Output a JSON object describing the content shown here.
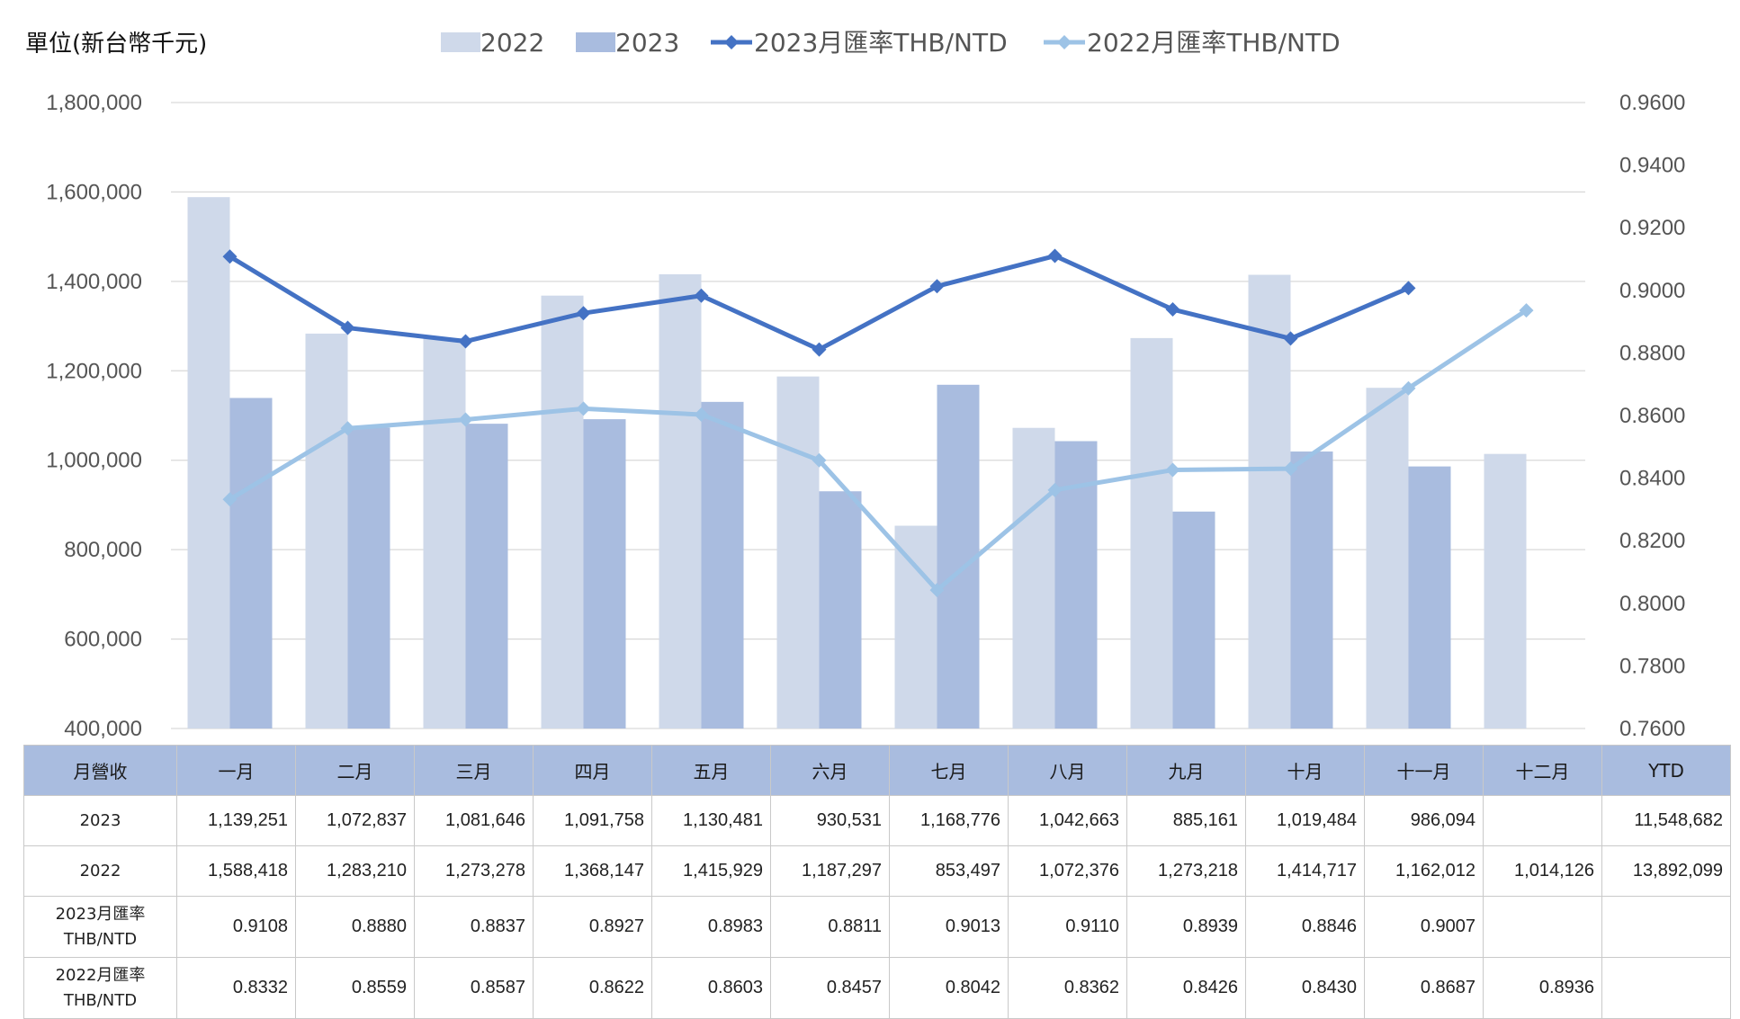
{
  "unit_label": "單位(新台幣千元)",
  "chart_data": {
    "type": "bar",
    "categories": [
      "一月",
      "二月",
      "三月",
      "四月",
      "五月",
      "六月",
      "七月",
      "八月",
      "九月",
      "十月",
      "十一月",
      "十二月"
    ],
    "series": [
      {
        "name": "2022",
        "kind": "bar",
        "axis": "left",
        "color": "#cfd9ea",
        "values": [
          1588418,
          1283210,
          1273278,
          1368147,
          1415929,
          1187297,
          853497,
          1072376,
          1273218,
          1414717,
          1162012,
          1014126
        ]
      },
      {
        "name": "2023",
        "kind": "bar",
        "axis": "left",
        "color": "#a9bcdf",
        "values": [
          1139251,
          1072837,
          1081646,
          1091758,
          1130481,
          930531,
          1168776,
          1042663,
          885161,
          1019484,
          986094,
          null
        ]
      },
      {
        "name": "2023月匯率THB/NTD",
        "kind": "line",
        "axis": "right",
        "color": "#4472c4",
        "values": [
          0.9108,
          0.888,
          0.8837,
          0.8927,
          0.8983,
          0.8811,
          0.9013,
          0.911,
          0.8939,
          0.8846,
          0.9007,
          null
        ]
      },
      {
        "name": "2022月匯率THB/NTD",
        "kind": "line",
        "axis": "right",
        "color": "#9dc3e6",
        "values": [
          0.8332,
          0.8559,
          0.8587,
          0.8622,
          0.8603,
          0.8457,
          0.8042,
          0.8362,
          0.8426,
          0.843,
          0.8687,
          0.8936
        ]
      }
    ],
    "y_left": {
      "min": 400000,
      "max": 1800000,
      "step": 200000,
      "ticks": [
        "400,000",
        "600,000",
        "800,000",
        "1,000,000",
        "1,200,000",
        "1,400,000",
        "1,600,000",
        "1,800,000"
      ]
    },
    "y_right": {
      "min": 0.76,
      "max": 0.96,
      "step": 0.02,
      "ticks": [
        "0.7600",
        "0.7800",
        "0.8000",
        "0.8200",
        "0.8400",
        "0.8600",
        "0.8800",
        "0.9000",
        "0.9200",
        "0.9400",
        "0.9600"
      ]
    },
    "grid": true,
    "legend_position": "top"
  },
  "table": {
    "header": [
      "月營收",
      "一月",
      "二月",
      "三月",
      "四月",
      "五月",
      "六月",
      "七月",
      "八月",
      "九月",
      "十月",
      "十一月",
      "十二月",
      "YTD"
    ],
    "rows": [
      {
        "label": "2023",
        "cells": [
          "1,139,251",
          "1,072,837",
          "1,081,646",
          "1,091,758",
          "1,130,481",
          "930,531",
          "1,168,776",
          "1,042,663",
          "885,161",
          "1,019,484",
          "986,094",
          "",
          "11,548,682"
        ]
      },
      {
        "label": "2022",
        "cells": [
          "1,588,418",
          "1,283,210",
          "1,273,278",
          "1,368,147",
          "1,415,929",
          "1,187,297",
          "853,497",
          "1,072,376",
          "1,273,218",
          "1,414,717",
          "1,162,012",
          "1,014,126",
          "13,892,099"
        ]
      },
      {
        "label_line1": "2023月匯率",
        "label_line2": "THB/NTD",
        "cells": [
          "0.9108",
          "0.8880",
          "0.8837",
          "0.8927",
          "0.8983",
          "0.8811",
          "0.9013",
          "0.9110",
          "0.8939",
          "0.8846",
          "0.9007",
          "",
          ""
        ]
      },
      {
        "label_line1": "2022月匯率",
        "label_line2": "THB/NTD",
        "cells": [
          "0.8332",
          "0.8559",
          "0.8587",
          "0.8622",
          "0.8603",
          "0.8457",
          "0.8042",
          "0.8362",
          "0.8426",
          "0.8430",
          "0.8687",
          "0.8936",
          ""
        ]
      }
    ]
  }
}
